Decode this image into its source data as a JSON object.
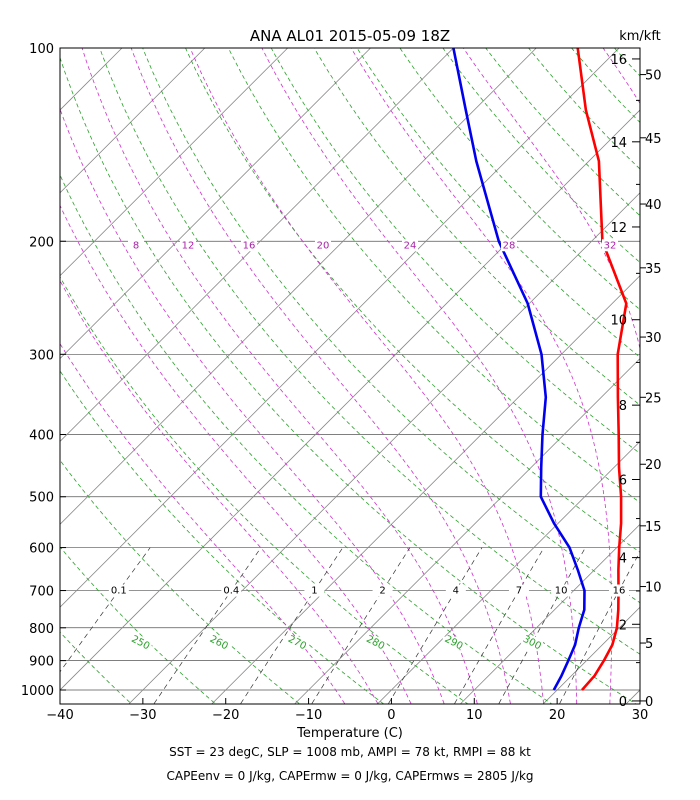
{
  "chart_data": {
    "type": "line",
    "title": "ANA AL01 2015-05-09 18Z",
    "xlabel": "Temperature (C)",
    "right_axis_label": "km/kft",
    "xlim": [
      -40,
      30
    ],
    "ylim": [
      1050,
      100
    ],
    "y_scale": "log",
    "skew": "skew-T",
    "x_ticks": [
      "−40",
      "−30",
      "−20",
      "−10",
      "0",
      "10",
      "20",
      "30"
    ],
    "pressure_ticks": [
      "100",
      "200",
      "300",
      "400",
      "500",
      "600",
      "700",
      "800",
      "900",
      "1000"
    ],
    "km_ticks": [
      {
        "label": "0",
        "pressure": 1040
      },
      {
        "label": "2",
        "pressure": 790
      },
      {
        "label": "4",
        "pressure": 622
      },
      {
        "label": "6",
        "pressure": 470
      },
      {
        "label": "8",
        "pressure": 360
      },
      {
        "label": "10",
        "pressure": 265
      },
      {
        "label": "12",
        "pressure": 190
      },
      {
        "label": "14",
        "pressure": 140
      },
      {
        "label": "16",
        "pressure": 104
      }
    ],
    "kft_ticks": [
      {
        "label": "0",
        "pressure": 1040
      },
      {
        "label": "5",
        "pressure": 845
      },
      {
        "label": "10",
        "pressure": 690
      },
      {
        "label": "15",
        "pressure": 555
      },
      {
        "label": "20",
        "pressure": 445
      },
      {
        "label": "25",
        "pressure": 350
      },
      {
        "label": "30",
        "pressure": 282
      },
      {
        "label": "35",
        "pressure": 220
      },
      {
        "label": "40",
        "pressure": 175
      },
      {
        "label": "45",
        "pressure": 138
      },
      {
        "label": "50",
        "pressure": 110
      }
    ],
    "series": [
      {
        "color": "#ff0000",
        "points": [
          [
            1000,
            23.0
          ],
          [
            950,
            22.8
          ],
          [
            900,
            22.1
          ],
          [
            850,
            21.2
          ],
          [
            800,
            19.7
          ],
          [
            750,
            17.7
          ],
          [
            700,
            15.4
          ],
          [
            650,
            12.9
          ],
          [
            600,
            10.3
          ],
          [
            550,
            7.6
          ],
          [
            500,
            4.4
          ],
          [
            450,
            0.6
          ],
          [
            400,
            -3.4
          ],
          [
            350,
            -8.0
          ],
          [
            300,
            -13.2
          ],
          [
            250,
            -18.3
          ],
          [
            200,
            -28.7
          ],
          [
            150,
            -38.8
          ],
          [
            125,
            -46.5
          ],
          [
            100,
            -55.0
          ]
        ]
      },
      {
        "color": "#0000ee",
        "points": [
          [
            1000,
            19.6
          ],
          [
            950,
            18.8
          ],
          [
            900,
            17.8
          ],
          [
            850,
            16.7
          ],
          [
            800,
            15.1
          ],
          [
            750,
            13.6
          ],
          [
            700,
            11.3
          ],
          [
            650,
            8.0
          ],
          [
            600,
            4.3
          ],
          [
            550,
            -0.5
          ],
          [
            500,
            -5.3
          ],
          [
            450,
            -8.8
          ],
          [
            400,
            -12.6
          ],
          [
            350,
            -16.7
          ],
          [
            300,
            -22.4
          ],
          [
            250,
            -30.2
          ],
          [
            200,
            -41.2
          ],
          [
            150,
            -53.6
          ],
          [
            125,
            -61.0
          ],
          [
            100,
            -70.0
          ]
        ]
      }
    ],
    "mixing_ratio_labels": [
      "0.1",
      "0.4",
      "1",
      "2",
      "4",
      "7",
      "10",
      "16"
    ],
    "theta_labels": [
      "250",
      "260",
      "270",
      "280",
      "290",
      "300"
    ],
    "theta_e_labels": [
      "8",
      "12",
      "16",
      "20",
      "24",
      "28",
      "32"
    ]
  },
  "footer": {
    "line1": "SST = 23 degC, SLP = 1008 mb, AMPI = 78 kt, RMPI = 88 kt",
    "line2": "CAPEenv = 0 J/kg, CAPErmw = 0 J/kg, CAPErmws = 2805 J/kg"
  }
}
